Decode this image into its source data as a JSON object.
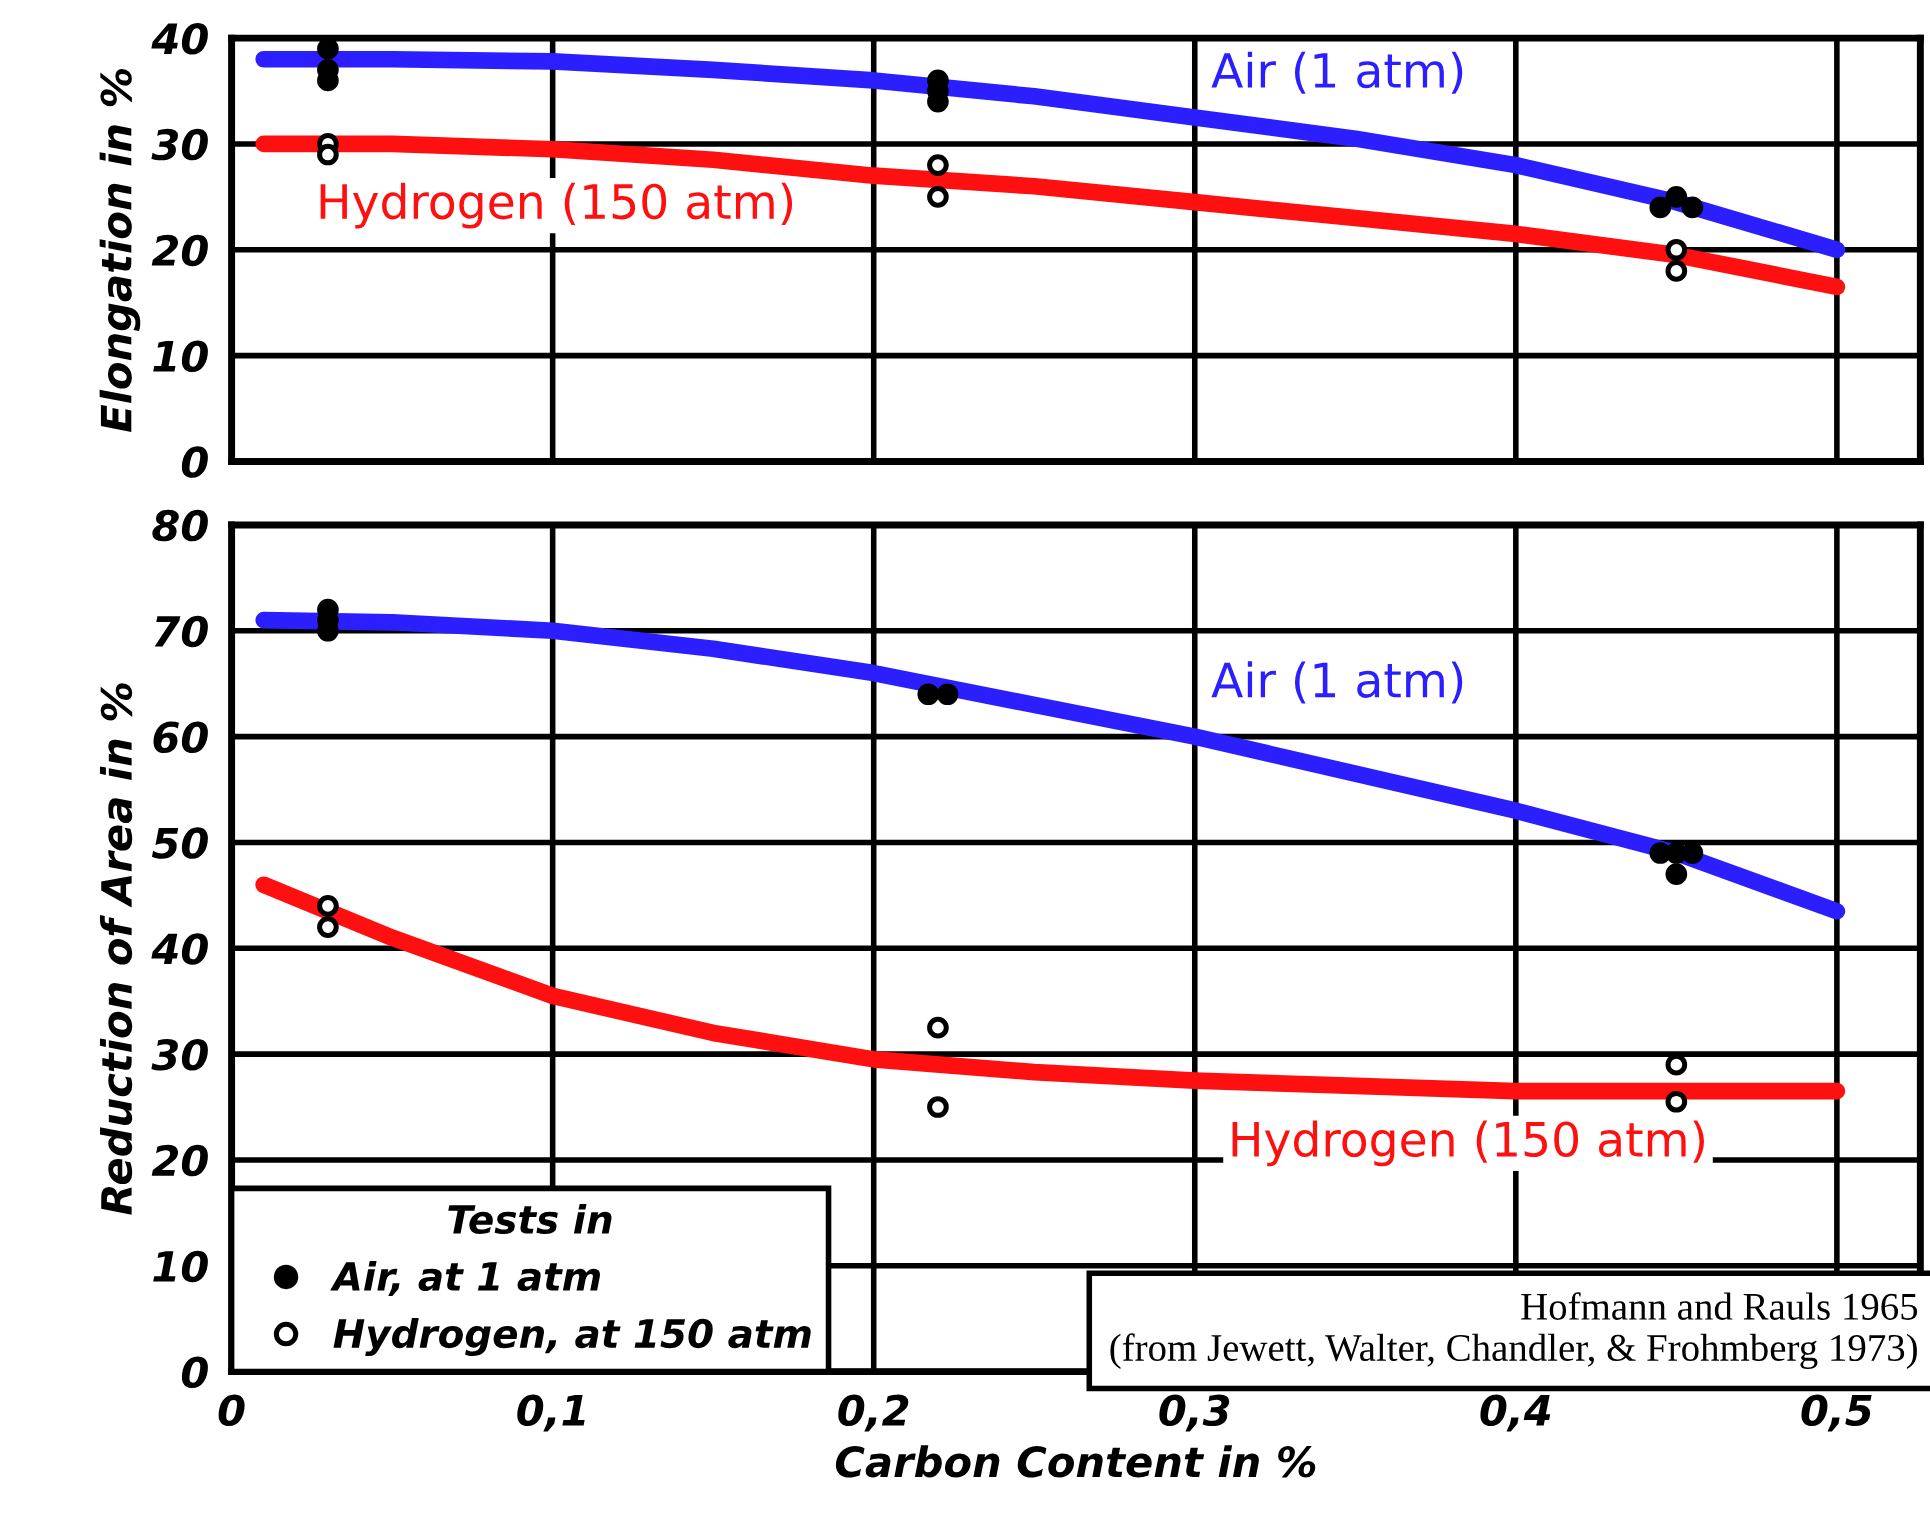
{
  "chart_data": [
    {
      "type": "line",
      "ylabel": "Elongation in %",
      "xlim": [
        0,
        0.526
      ],
      "ylim": [
        0,
        40
      ],
      "yticks": [
        0,
        10,
        20,
        30,
        40
      ],
      "xticks": [
        {
          "value": 0,
          "label": null
        },
        {
          "value": 0.1,
          "label": null
        },
        {
          "value": 0.2,
          "label": null
        },
        {
          "value": 0.3,
          "label": null
        },
        {
          "value": 0.4,
          "label": null
        },
        {
          "value": 0.5,
          "label": null
        }
      ],
      "tick_labels": "y",
      "grid": true,
      "legend": false,
      "series": [
        {
          "name": "Air (1 atm)",
          "color": "#2b1fff",
          "marker": "none",
          "x": [
            0.01,
            0.05,
            0.1,
            0.15,
            0.2,
            0.25,
            0.3,
            0.35,
            0.4,
            0.45,
            0.5
          ],
          "values": [
            38,
            38,
            37.8,
            37,
            36,
            34.5,
            32.5,
            30.5,
            28,
            24.5,
            20
          ]
        },
        {
          "name": "Hydrogen (150 atm)",
          "color": "#ff1010",
          "marker": "none",
          "x": [
            0.01,
            0.05,
            0.1,
            0.15,
            0.2,
            0.25,
            0.3,
            0.35,
            0.4,
            0.45,
            0.5
          ],
          "values": [
            30,
            30,
            29.5,
            28.5,
            27,
            26,
            24.5,
            23,
            21.5,
            19.5,
            16.5
          ]
        },
        {
          "type": "scatter",
          "color": "#000000",
          "marker": "circle",
          "x": [
            0.03,
            0.03,
            0.03,
            0.22,
            0.22,
            0.22,
            0.445,
            0.455,
            0.45
          ],
          "values": [
            39,
            37,
            36,
            36,
            35,
            34,
            24,
            24,
            25
          ]
        },
        {
          "type": "scatter",
          "color": "#ffffff",
          "marker": "circle",
          "x": [
            0.03,
            0.03,
            0.22,
            0.22,
            0.45,
            0.45
          ],
          "values": [
            30,
            29,
            28,
            25,
            20,
            18
          ]
        }
      ]
    },
    {
      "type": "line",
      "ylabel": "Reduction of Area in %",
      "xlabel": "Carbon Content in %",
      "xlim": [
        0,
        0.526
      ],
      "ylim": [
        0,
        80
      ],
      "yticks": [
        0,
        10,
        20,
        30,
        40,
        50,
        60,
        70,
        80
      ],
      "xticks": [
        0,
        {
          "value": 0.1,
          "label": "0,1"
        },
        {
          "value": 0.2,
          "label": "0,2"
        },
        {
          "value": 0.3,
          "label": "0,3"
        },
        {
          "value": 0.4,
          "label": "0,4"
        },
        {
          "value": 0.5,
          "label": "0,5"
        }
      ],
      "grid": true,
      "legend": "bottom left",
      "legend_title": "Tests in",
      "annotations": [
        "Hofmann and Rauls 1965\n(from Jewett, Walter, Chandler, & Frohmberg 1973)"
      ],
      "series": [
        {
          "name": "Air (1 atm)",
          "color": "#2b1fff",
          "marker": "none",
          "x": [
            0.01,
            0.05,
            0.1,
            0.15,
            0.2,
            0.25,
            0.3,
            0.35,
            0.4,
            0.45,
            0.5
          ],
          "values": [
            71,
            70.8,
            70,
            68.3,
            66,
            63,
            60,
            56.5,
            53,
            49,
            43.5
          ]
        },
        {
          "name": "Hydrogen (150 atm)",
          "color": "#ff1010",
          "marker": "none",
          "x": [
            0.01,
            0.05,
            0.1,
            0.15,
            0.2,
            0.25,
            0.3,
            0.35,
            0.4,
            0.45,
            0.5
          ],
          "values": [
            46,
            41,
            35.5,
            32,
            29.5,
            28.3,
            27.5,
            27,
            26.5,
            26.5,
            26.5
          ]
        },
        {
          "name": "Air, at 1 atm",
          "type": "scatter",
          "color": "#000000",
          "marker": "circle",
          "x": [
            0.03,
            0.03,
            0.03,
            0.217,
            0.223,
            0.445,
            0.45,
            0.455,
            0.45
          ],
          "values": [
            72,
            71,
            70,
            64,
            64,
            49,
            49,
            49,
            47
          ]
        },
        {
          "name": "Hydrogen, at 150 atm",
          "type": "scatter",
          "color": "#ffffff",
          "marker": "circle",
          "x": [
            0.03,
            0.03,
            0.22,
            0.22,
            0.45,
            0.45
          ],
          "values": [
            44,
            42,
            32.5,
            25,
            29,
            25.5
          ]
        }
      ]
    }
  ]
}
